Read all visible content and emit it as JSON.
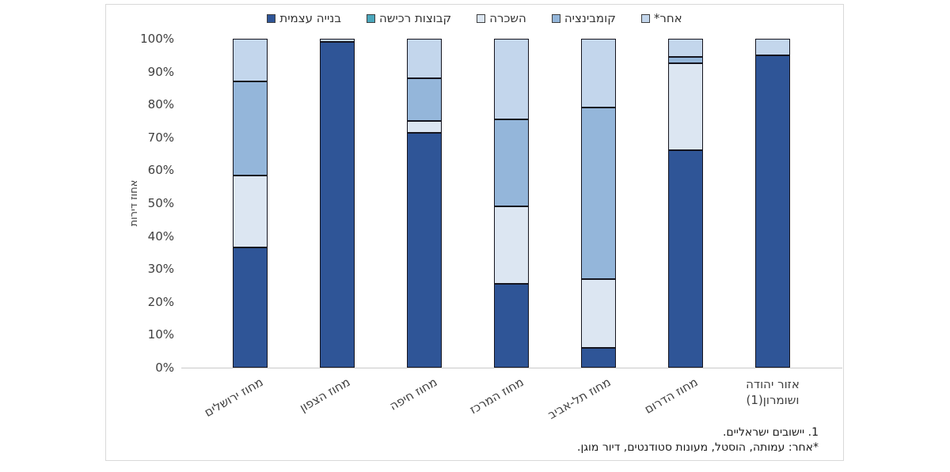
{
  "chart_data": {
    "type": "bar",
    "stacked": true,
    "ylabel": "אחוז דירות",
    "ylim": [
      0,
      100
    ],
    "ytick_labels": [
      "0%",
      "10%",
      "20%",
      "30%",
      "40%",
      "50%",
      "60%",
      "70%",
      "80%",
      "90%",
      "100%"
    ],
    "grid": false,
    "legend_position": "top",
    "categories": [
      "מחוז ירושלים",
      "מחוז הצפון",
      "מחוז חיפה",
      "מחוז המרכז",
      "מחוז תל-אביב",
      "מחוז הדרום",
      "אזור יהודה ושומרון(1)"
    ],
    "series": [
      {
        "name": "בנייה עצמית",
        "color": "#2F5597",
        "values": [
          36.5,
          99,
          71.5,
          25.5,
          6,
          66,
          95
        ]
      },
      {
        "name": "קבוצות רכישה",
        "color": "#4BA7BC",
        "values": [
          0,
          0,
          0,
          0,
          0,
          0,
          0
        ]
      },
      {
        "name": "השכרה",
        "color": "#DCE6F2",
        "values": [
          22,
          0,
          3.5,
          23.5,
          21,
          26.5,
          0
        ]
      },
      {
        "name": "קומבינציה",
        "color": "#94B6DA",
        "values": [
          28.5,
          0,
          13,
          26.5,
          52,
          2,
          0
        ]
      },
      {
        "name": "אחר*",
        "color": "#C3D6EC",
        "values": [
          13,
          1,
          12,
          24.5,
          21,
          5.5,
          5
        ]
      }
    ]
  },
  "footnotes": [
    "1. יישובים ישראליים.",
    "*אחר: עמותה, הוסטל, מעונות סטודנטים, דיור מוגן."
  ]
}
